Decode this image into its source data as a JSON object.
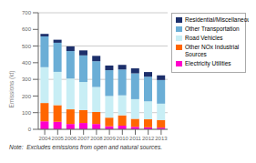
{
  "chart_data": {
    "type": "bar",
    "stacked": true,
    "categories": [
      "2004",
      "2005",
      "2006",
      "2007",
      "2008",
      "2009",
      "2010",
      "2011",
      "2012",
      "2013"
    ],
    "series": [
      {
        "name": "Electricity Utilities",
        "color": "#ff00cc",
        "values": [
          48,
          45,
          32,
          38,
          32,
          18,
          22,
          15,
          12,
          10
        ]
      },
      {
        "name": "Other NOx Industrial Sources",
        "color": "#ff6600",
        "values": [
          110,
          100,
          88,
          78,
          72,
          52,
          62,
          48,
          48,
          46
        ]
      },
      {
        "name": "Road Vehicles",
        "color": "#c8eef5",
        "values": [
          215,
          200,
          185,
          168,
          150,
          130,
          120,
          118,
          108,
          98
        ]
      },
      {
        "name": "Other Transportation",
        "color": "#6baed6",
        "values": [
          185,
          175,
          165,
          160,
          155,
          155,
          155,
          155,
          148,
          142
        ]
      },
      {
        "name": "Residential/Miscellaneous",
        "color": "#1c2f6b",
        "values": [
          15,
          18,
          28,
          30,
          32,
          28,
          28,
          30,
          28,
          28
        ]
      }
    ],
    "y_label": "Emissions (kt)",
    "ylim": [
      0,
      700
    ],
    "yticks": [
      0,
      100,
      200,
      300,
      400,
      500,
      600,
      700
    ],
    "grid": true,
    "legend": "right",
    "annotations": [
      "Note:  Excludes emissions from open and natural sources."
    ]
  }
}
